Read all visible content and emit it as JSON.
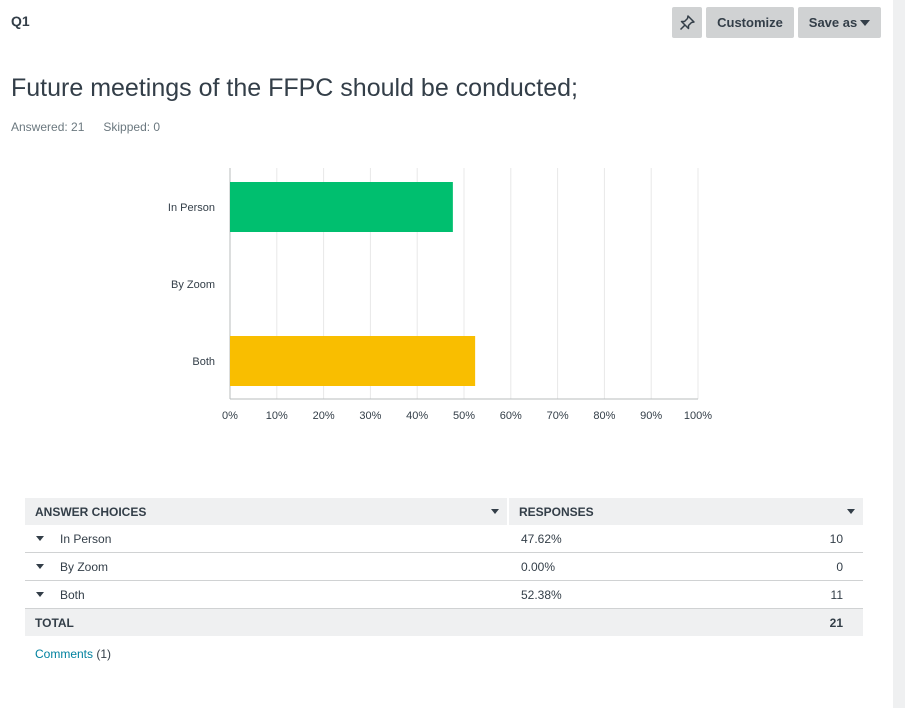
{
  "question": {
    "number": "Q1",
    "title": "Future meetings of the FFPC should be conducted;",
    "answered": "Answered: 21",
    "skipped": "Skipped: 0"
  },
  "toolbar": {
    "pin_icon": "pin-icon",
    "customize_label": "Customize",
    "save_label": "Save as"
  },
  "chart_data": {
    "type": "bar",
    "orientation": "horizontal",
    "categories": [
      "In Person",
      "By Zoom",
      "Both"
    ],
    "values": [
      47.62,
      0.0,
      52.38
    ],
    "colors": [
      "#00bf6f",
      "#00bf6f",
      "#f9be00"
    ],
    "xlim": [
      0,
      100
    ],
    "xticks": [
      "0%",
      "10%",
      "20%",
      "30%",
      "40%",
      "50%",
      "60%",
      "70%",
      "80%",
      "90%",
      "100%"
    ],
    "grid": true,
    "title": "",
    "xlabel": "",
    "ylabel": ""
  },
  "table": {
    "headers": {
      "choices": "ANSWER CHOICES",
      "responses": "RESPONSES"
    },
    "rows": [
      {
        "choice": "In Person",
        "percent": "47.62%",
        "count": "10"
      },
      {
        "choice": "By Zoom",
        "percent": "0.00%",
        "count": "0"
      },
      {
        "choice": "Both",
        "percent": "52.38%",
        "count": "11"
      }
    ],
    "total_label": "TOTAL",
    "total_count": "21"
  },
  "comments": {
    "label": "Comments",
    "count": "(1)"
  }
}
